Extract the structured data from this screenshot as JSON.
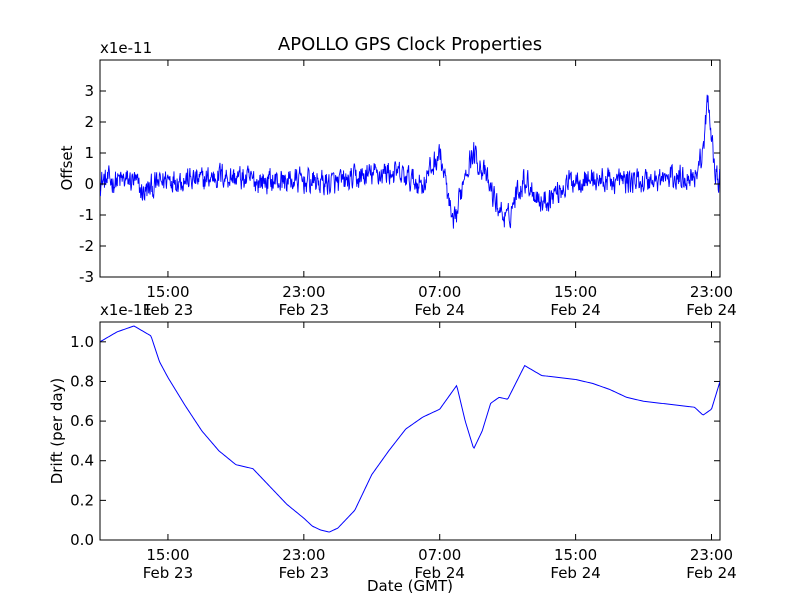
{
  "title": "APOLLO GPS Clock Properties",
  "x_axis_label": "Date (GMT)",
  "colors": {
    "line": "#0000ff",
    "axes": "#000000",
    "background": "#ffffff"
  },
  "chart_data": [
    {
      "type": "line",
      "name": "offset",
      "title": "APOLLO GPS Clock Properties",
      "ylabel": "Offset",
      "xlabel": "",
      "y_scale_label": "x1e-11",
      "x_unit": "hours from Feb 23 11:00 GMT",
      "xlim": [
        0,
        36.5
      ],
      "ylim": [
        -3,
        4
      ],
      "yticks": [
        -3,
        -2,
        -1,
        0,
        1,
        2,
        3
      ],
      "xticks": [
        {
          "x": 4,
          "time": "15:00",
          "date": "Feb 23"
        },
        {
          "x": 12,
          "time": "23:00",
          "date": "Feb 23"
        },
        {
          "x": 20,
          "time": "07:00",
          "date": "Feb 24"
        },
        {
          "x": 28,
          "time": "15:00",
          "date": "Feb 24"
        },
        {
          "x": 36,
          "time": "23:00",
          "date": "Feb 24"
        }
      ],
      "series": [
        {
          "name": "Offset",
          "noise_amplitude": 0.35,
          "x": [
            0,
            2,
            2.5,
            4,
            6,
            7,
            9,
            12,
            14,
            16,
            17,
            18,
            19,
            19.5,
            20,
            20.3,
            20.8,
            21,
            21.5,
            22,
            22.5,
            23,
            23.5,
            24,
            24.5,
            25,
            26,
            28,
            30,
            32,
            34,
            35,
            35.5,
            35.8,
            36.1,
            36.3,
            36.5
          ],
          "y": [
            0.1,
            0.1,
            -0.3,
            0.2,
            0.1,
            0.3,
            0.1,
            0.1,
            0.0,
            0.3,
            0.4,
            0.2,
            0.0,
            0.5,
            1.0,
            0.2,
            -1.5,
            -1.0,
            0.5,
            1.0,
            0.5,
            -0.2,
            -0.8,
            -1.2,
            -0.3,
            0.2,
            -0.6,
            0.2,
            0.1,
            0.1,
            0.2,
            0.3,
            1.0,
            2.8,
            1.0,
            0.2,
            0.1
          ]
        }
      ]
    },
    {
      "type": "line",
      "name": "drift",
      "ylabel": "Drift (per day)",
      "xlabel": "Date (GMT)",
      "y_scale_label": "x1e-11",
      "x_unit": "hours from Feb 23 11:00 GMT",
      "xlim": [
        0,
        36.5
      ],
      "ylim": [
        0.0,
        1.1
      ],
      "yticks": [
        0.0,
        0.2,
        0.4,
        0.6,
        0.8,
        1.0
      ],
      "ytick_labels": [
        "0.0",
        "0.2",
        "0.4",
        "0.6",
        "0.8",
        "1.0"
      ],
      "xticks": [
        {
          "x": 4,
          "time": "15:00",
          "date": "Feb 23"
        },
        {
          "x": 12,
          "time": "23:00",
          "date": "Feb 23"
        },
        {
          "x": 20,
          "time": "07:00",
          "date": "Feb 24"
        },
        {
          "x": 28,
          "time": "15:00",
          "date": "Feb 24"
        },
        {
          "x": 36,
          "time": "23:00",
          "date": "Feb 24"
        }
      ],
      "series": [
        {
          "name": "Drift",
          "x": [
            0,
            1,
            2,
            3,
            3.5,
            4,
            5,
            6,
            7,
            8,
            9,
            10,
            11,
            12,
            12.5,
            13,
            13.5,
            14,
            15,
            16,
            17,
            18,
            19,
            20,
            20.5,
            21,
            21.5,
            22,
            22.5,
            23,
            23.5,
            24,
            25,
            26,
            27,
            28,
            29,
            30,
            31,
            32,
            33,
            34,
            35,
            35.5,
            36,
            36.5
          ],
          "y": [
            1.0,
            1.05,
            1.08,
            1.03,
            0.9,
            0.82,
            0.68,
            0.55,
            0.45,
            0.38,
            0.36,
            0.27,
            0.18,
            0.11,
            0.07,
            0.05,
            0.04,
            0.06,
            0.15,
            0.33,
            0.45,
            0.56,
            0.62,
            0.66,
            0.72,
            0.78,
            0.6,
            0.46,
            0.55,
            0.69,
            0.72,
            0.71,
            0.88,
            0.83,
            0.82,
            0.81,
            0.79,
            0.76,
            0.72,
            0.7,
            0.69,
            0.68,
            0.67,
            0.63,
            0.66,
            0.8
          ]
        }
      ]
    }
  ]
}
